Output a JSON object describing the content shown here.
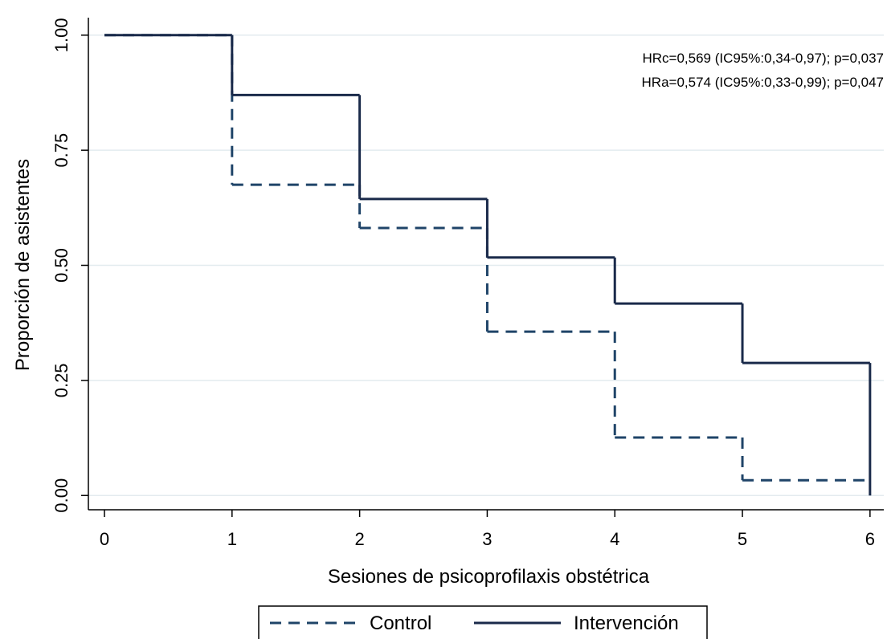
{
  "chart_data": {
    "type": "step",
    "x_label": "Sesiones de psicoprofilaxis obstétrica",
    "y_label": "Proporción de asistentes",
    "annotations": [
      "HRc=0,569 (IC95%:0,34-0,97); p=0,037",
      "HRa=0,574 (IC95%:0,33-0,99); p=0,047"
    ],
    "x": [
      0,
      1,
      2,
      3,
      4,
      5,
      6
    ],
    "series": [
      {
        "name": "Control",
        "color": "#1f4468",
        "dash": true,
        "values": [
          1,
          0.675,
          0.581,
          0.356,
          0.126,
          0.033,
          0.033
        ]
      },
      {
        "name": "Intervención",
        "color": "#1a2a4a",
        "dash": false,
        "values": [
          1,
          0.87,
          0.644,
          0.517,
          0.417,
          0.288,
          0
        ]
      }
    ],
    "xlim": [
      -0.126,
      6.108
    ],
    "ylim": [
      -0.031,
      1.038
    ],
    "xticks": [
      0,
      1,
      2,
      3,
      4,
      5,
      6
    ],
    "yticks": [
      {
        "value": 0,
        "label": "0.00"
      },
      {
        "value": 0.25,
        "label": "0.25"
      },
      {
        "value": 0.5,
        "label": "0.50"
      },
      {
        "value": 0.75,
        "label": "0.75"
      },
      {
        "value": 1,
        "label": "1.00"
      }
    ],
    "grid": true,
    "legend": "bottom"
  }
}
